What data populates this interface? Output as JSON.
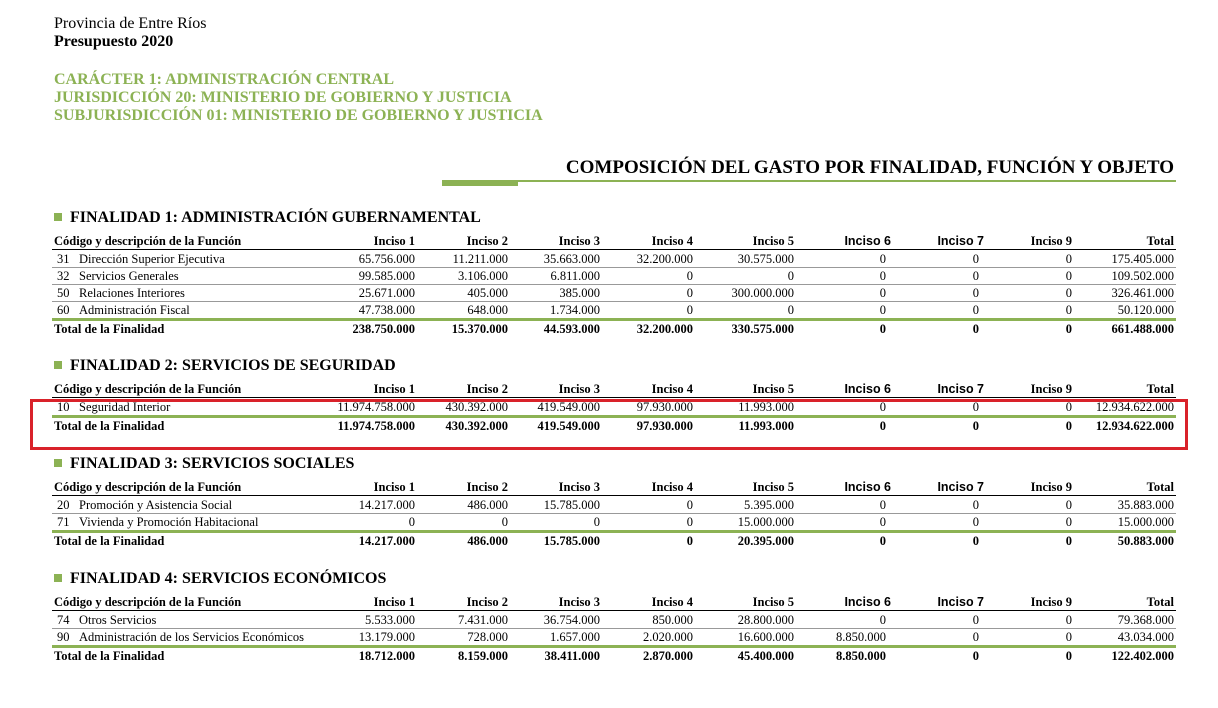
{
  "header": {
    "province": "Provincia de Entre Ríos",
    "title": "Presupuesto 2020",
    "lines": [
      "CARÁCTER 1: ADMINISTRACIÓN CENTRAL",
      "JURISDICCIÓN 20: MINISTERIO DE GOBIERNO Y JUSTICIA",
      "SUBJURISDICCIÓN 01: MINISTERIO DE GOBIERNO Y JUSTICIA"
    ]
  },
  "section_title": "COMPOSICIÓN DEL GASTO POR FINALIDAD, FUNCIÓN Y OBJETO",
  "columns": [
    "Código y descripción de la Función",
    "Inciso 1",
    "Inciso 2",
    "Inciso 3",
    "Inciso 4",
    "Inciso 5",
    "Inciso 6",
    "Inciso 7",
    "Inciso 9",
    "Total"
  ],
  "finalidades": [
    {
      "title": "FINALIDAD 1: ADMINISTRACIÓN GUBERNAMENTAL",
      "rows": [
        [
          "31",
          "Dirección Superior Ejecutiva",
          "65.756.000",
          "11.211.000",
          "35.663.000",
          "32.200.000",
          "30.575.000",
          "0",
          "0",
          "0",
          "175.405.000"
        ],
        [
          "32",
          "Servicios Generales",
          "99.585.000",
          "3.106.000",
          "6.811.000",
          "0",
          "0",
          "0",
          "0",
          "0",
          "109.502.000"
        ],
        [
          "50",
          "Relaciones Interiores",
          "25.671.000",
          "405.000",
          "385.000",
          "0",
          "300.000.000",
          "0",
          "0",
          "0",
          "326.461.000"
        ],
        [
          "60",
          "Administración Fiscal",
          "47.738.000",
          "648.000",
          "1.734.000",
          "0",
          "0",
          "0",
          "0",
          "0",
          "50.120.000"
        ]
      ],
      "total": [
        "Total de la Finalidad",
        "238.750.000",
        "15.370.000",
        "44.593.000",
        "32.200.000",
        "330.575.000",
        "0",
        "0",
        "0",
        "661.488.000"
      ]
    },
    {
      "title": "FINALIDAD 2: SERVICIOS DE SEGURIDAD",
      "rows": [
        [
          "10",
          "Seguridad Interior",
          "11.974.758.000",
          "430.392.000",
          "419.549.000",
          "97.930.000",
          "11.993.000",
          "0",
          "0",
          "0",
          "12.934.622.000"
        ]
      ],
      "total": [
        "Total de la Finalidad",
        "11.974.758.000",
        "430.392.000",
        "419.549.000",
        "97.930.000",
        "11.993.000",
        "0",
        "0",
        "0",
        "12.934.622.000"
      ]
    },
    {
      "title": "FINALIDAD 3: SERVICIOS SOCIALES",
      "rows": [
        [
          "20",
          "Promoción y Asistencia Social",
          "14.217.000",
          "486.000",
          "15.785.000",
          "0",
          "5.395.000",
          "0",
          "0",
          "0",
          "35.883.000"
        ],
        [
          "71",
          "Vivienda y Promoción Habitacional",
          "0",
          "0",
          "0",
          "0",
          "15.000.000",
          "0",
          "0",
          "0",
          "15.000.000"
        ]
      ],
      "total": [
        "Total de la Finalidad",
        "14.217.000",
        "486.000",
        "15.785.000",
        "0",
        "20.395.000",
        "0",
        "0",
        "0",
        "50.883.000"
      ]
    },
    {
      "title": "FINALIDAD 4: SERVICIOS ECONÓMICOS",
      "rows": [
        [
          "74",
          "Otros Servicios",
          "5.533.000",
          "7.431.000",
          "36.754.000",
          "850.000",
          "28.800.000",
          "0",
          "0",
          "0",
          "79.368.000"
        ],
        [
          "90",
          "Administración de los Servicios Económicos",
          "13.179.000",
          "728.000",
          "1.657.000",
          "2.020.000",
          "16.600.000",
          "8.850.000",
          "0",
          "0",
          "43.034.000"
        ]
      ],
      "total": [
        "Total de la Finalidad",
        "18.712.000",
        "8.159.000",
        "38.411.000",
        "2.870.000",
        "45.400.000",
        "8.850.000",
        "0",
        "0",
        "122.402.000"
      ]
    }
  ]
}
